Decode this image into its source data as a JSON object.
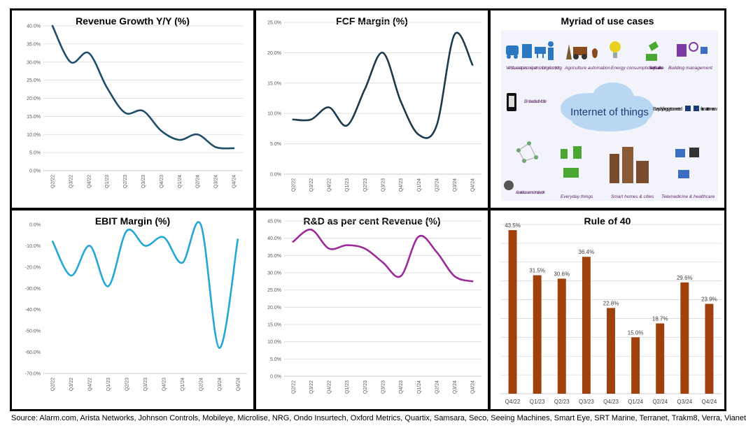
{
  "source": "Source: Alarm.com, Arista Networks, Johnson Controls, Mobileye, Microlise, NRG, Ondo Insurtech, Oxford Metrics, Quartix, Samsara, Seco, Seeing Machines, Smart Eye, SRT Marine, Terranet, Trakm8, Verra, Vianet",
  "iot": {
    "title": "Myriad of use cases",
    "cloud_text": "Internet of things",
    "tagline_left": "Everyday things get connected",
    "tagline_right": "for smarter tomorrow",
    "labels": {
      "vehicle": "Vehicle, asset person & pet monitoring & controlling",
      "agriculture": "Agriculture automation",
      "energy": "Energy consumption",
      "security": "Security & surveillance",
      "building": "Building management",
      "mobile": "Embedded Mobile",
      "sensor": "& wireless sensor network",
      "everyday": "Everyday things",
      "smart_homes": "Smart homes & cities",
      "telemedicine": "Telemedicine & healthcare"
    }
  },
  "chart_data": [
    {
      "id": "revenue",
      "type": "line",
      "title": "Revenue Growth Y/Y (%)",
      "color": "#1f4e6b",
      "categories": [
        "Q2/22",
        "Q3/22",
        "Q4/22",
        "Q1/23",
        "Q2/23",
        "Q3/23",
        "Q4/23",
        "Q1/24",
        "Q2/24",
        "Q3/24",
        "Q4/24"
      ],
      "values": [
        40,
        30,
        32.5,
        23,
        16,
        16.5,
        11,
        8.5,
        10,
        6.5,
        6.2
      ],
      "ylim": [
        0,
        40
      ],
      "yticks": [
        0,
        5,
        10,
        15,
        20,
        25,
        30,
        35,
        40
      ],
      "ytick_labels": [
        "0.0%",
        "5.0%",
        "10.0%",
        "15.0%",
        "20.0%",
        "25.0%",
        "30.0%",
        "35.0%",
        "40.0%"
      ],
      "grid": true
    },
    {
      "id": "fcf",
      "type": "line",
      "title": "FCF Margin (%)",
      "color": "#1c3a4f",
      "categories": [
        "Q2/22",
        "Q3/22",
        "Q4/22",
        "Q1/23",
        "Q2/23",
        "Q3/23",
        "Q4/23",
        "Q1/24",
        "Q2/24",
        "Q3/24",
        "Q4/24"
      ],
      "values": [
        9,
        9,
        11,
        8,
        14,
        20,
        12,
        6.5,
        8,
        23,
        18
      ],
      "ylim": [
        0,
        25
      ],
      "yticks": [
        0,
        5,
        10,
        15,
        20,
        25
      ],
      "ytick_labels": [
        "0.0%",
        "5.0%",
        "10.0%",
        "15.0%",
        "20.0%",
        "25.0%"
      ],
      "grid": true
    },
    {
      "id": "ebit",
      "type": "line",
      "title": "EBIT Margin (%)",
      "color": "#23a7d6",
      "categories": [
        "Q2/22",
        "Q3/22",
        "Q4/22",
        "Q1/23",
        "Q2/23",
        "Q3/23",
        "Q4/23",
        "Q1/24",
        "Q2/24",
        "Q3/24",
        "Q4/24"
      ],
      "values": [
        -8,
        -24,
        -10,
        -29,
        -3,
        -10,
        -6,
        -18,
        0,
        -58,
        -7
      ],
      "ylim": [
        -70,
        0
      ],
      "yticks": [
        -70,
        -60,
        -50,
        -40,
        -30,
        -20,
        -10,
        0
      ],
      "ytick_labels": [
        "-70.0%",
        "-60.0%",
        "-50.0%",
        "-40.0%",
        "-30.0%",
        "-20.0%",
        "-10.0%",
        "0.0%"
      ],
      "grid": false
    },
    {
      "id": "rnd",
      "type": "line",
      "title": "R&D as per cent Revenue (%)",
      "color": "#9b2a9b",
      "categories": [
        "Q2/22",
        "Q3/22",
        "Q4/22",
        "Q1/23",
        "Q2/23",
        "Q3/23",
        "Q4/23",
        "Q1/24",
        "Q2/24",
        "Q3/24",
        "Q4/24"
      ],
      "values": [
        39,
        42.5,
        37,
        38,
        37,
        33,
        29,
        40.5,
        36,
        29,
        27.5
      ],
      "ylim": [
        0,
        45
      ],
      "yticks": [
        0,
        5,
        10,
        15,
        20,
        25,
        30,
        35,
        40,
        45
      ],
      "ytick_labels": [
        "0.0%",
        "5.0%",
        "10.0%",
        "15.0%",
        "20.0%",
        "25.0%",
        "30.0%",
        "35.0%",
        "40.0%",
        "45.0%"
      ],
      "grid": true
    },
    {
      "id": "rule40",
      "type": "bar",
      "title": "Rule of 40",
      "color": "#a0410d",
      "categories": [
        "Q4/22",
        "Q1/23",
        "Q2/23",
        "Q3/23",
        "Q4/23",
        "Q1/24",
        "Q2/24",
        "Q3/24",
        "Q4/24"
      ],
      "values": [
        43.5,
        31.5,
        30.6,
        36.4,
        22.8,
        15.0,
        18.7,
        29.6,
        23.9
      ],
      "value_labels": [
        "43.5%",
        "31.5%",
        "30.6%",
        "36.4%",
        "22.8%",
        "15.0%",
        "18.7%",
        "29.6%",
        "23.9%"
      ],
      "ylim": [
        0,
        45
      ],
      "grid": true
    }
  ]
}
